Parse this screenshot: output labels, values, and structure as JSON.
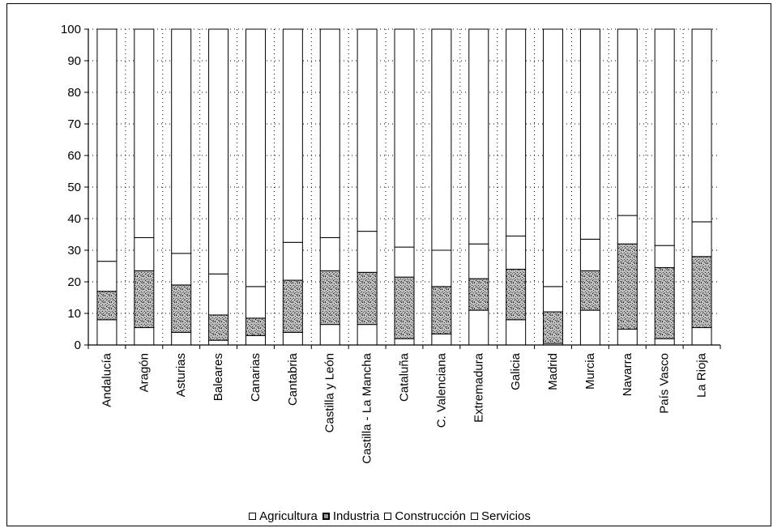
{
  "chart_data": {
    "type": "bar",
    "stacked": true,
    "categories": [
      "Andalucía",
      "Aragón",
      "Asturias",
      "Baleares",
      "Canarias",
      "Cantabria",
      "Castilla y León",
      "Castilla - La Mancha",
      "Cataluña",
      "C. Valenciana",
      "Extremadura",
      "Galicia",
      "Madrid",
      "Murcia",
      "Navarra",
      "País Vasco",
      "La Rioja"
    ],
    "series": [
      {
        "name": "Agricultura",
        "values": [
          8,
          5.5,
          4,
          1.5,
          3,
          4,
          6.5,
          6.5,
          2,
          3.5,
          11,
          8,
          0.5,
          11,
          5,
          2,
          5.5
        ]
      },
      {
        "name": "Industria",
        "values": [
          9,
          18,
          15,
          8,
          5.5,
          16.5,
          17,
          16.5,
          19.5,
          15,
          10,
          16,
          10,
          12.5,
          27,
          22.5,
          22.5
        ]
      },
      {
        "name": "Construcción",
        "values": [
          9.5,
          10.5,
          10,
          13,
          10,
          12,
          10.5,
          13,
          9.5,
          11.5,
          11,
          10.5,
          8,
          10,
          9,
          7,
          11
        ]
      },
      {
        "name": "Servicios",
        "values": [
          73.5,
          66,
          71,
          77.5,
          81.5,
          67.5,
          66,
          64,
          69,
          70,
          68,
          65.5,
          81.5,
          66.5,
          59,
          68.5,
          61
        ]
      }
    ],
    "ylim": [
      0,
      100
    ],
    "yticks": [
      0,
      10,
      20,
      30,
      40,
      50,
      60,
      70,
      80,
      90,
      100
    ],
    "grid": "dotted-horizontal",
    "legend_position": "bottom",
    "colors": {
      "Agricultura": "#ffffff",
      "Industria": "#b8b8b8",
      "Construcción": "#ffffff",
      "Servicios": "#ffffff",
      "axis": "#000000"
    }
  }
}
